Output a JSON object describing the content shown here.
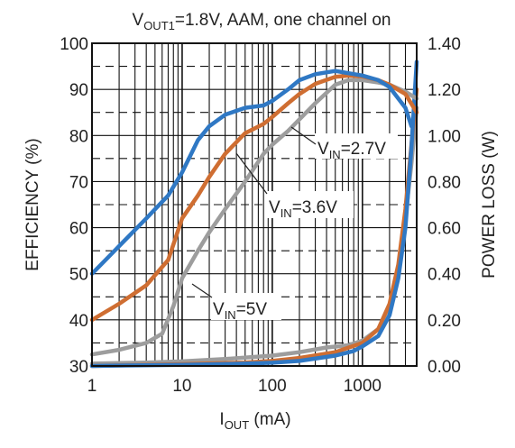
{
  "chart_data": {
    "type": "line",
    "title": {
      "main": "V",
      "sub": "OUT1",
      "rest": "=1.8V, AAM, one channel on"
    },
    "xlabel": {
      "main": "I",
      "sub": "OUT",
      "rest": " (mA)"
    },
    "ylabel_left": "EFFICIENCY (%)",
    "ylabel_right": "POWER LOSS (W)",
    "x_scale": "log",
    "xlim": [
      1,
      4000
    ],
    "ylim_left": [
      30,
      100
    ],
    "ylim_right": [
      0,
      1.4
    ],
    "x_ticks": [
      1,
      10,
      100,
      1000
    ],
    "x_tick_labels": [
      "1",
      "10",
      "100",
      "1000"
    ],
    "y_ticks_left": [
      30,
      40,
      50,
      60,
      70,
      80,
      90,
      100
    ],
    "y_tick_labels_left": [
      "30",
      "40",
      "50",
      "60",
      "70",
      "80",
      "90",
      "100"
    ],
    "y_ticks_right": [
      0,
      0.2,
      0.4,
      0.6,
      0.8,
      1.0,
      1.2,
      1.4
    ],
    "y_tick_labels_right": [
      "0.00",
      "0.20",
      "0.40",
      "0.60",
      "0.80",
      "1.00",
      "1.20",
      "1.40"
    ],
    "grid": true,
    "series": [
      {
        "label": {
          "main": "V",
          "sub": "IN",
          "rest": "=2.7V"
        },
        "color": "#2f78c4",
        "efficiency": {
          "x": [
            1,
            2,
            4,
            7,
            10,
            15,
            20,
            30,
            50,
            80,
            100,
            150,
            200,
            300,
            500,
            700,
            1000,
            1500,
            2000,
            3000,
            3500
          ],
          "y": [
            50,
            56,
            62,
            67,
            72,
            79,
            82,
            84.5,
            86,
            86.5,
            87.5,
            90,
            92,
            93.3,
            94,
            93.5,
            93,
            92,
            90.5,
            86,
            82
          ]
        },
        "power_loss": {
          "x": [
            1,
            10,
            50,
            100,
            200,
            500,
            800,
            1000,
            1500,
            2000,
            2500,
            3000,
            3500,
            3800,
            4000
          ],
          "y": [
            0.0,
            0.005,
            0.01,
            0.014,
            0.022,
            0.045,
            0.065,
            0.085,
            0.13,
            0.22,
            0.38,
            0.6,
            0.95,
            1.18,
            1.32
          ]
        }
      },
      {
        "label": {
          "main": "V",
          "sub": "IN",
          "rest": "=3.6V"
        },
        "color": "#cf6e32",
        "efficiency": {
          "x": [
            1,
            2,
            4,
            7,
            10,
            15,
            20,
            30,
            50,
            80,
            100,
            150,
            200,
            300,
            500,
            700,
            1000,
            1500,
            2000,
            3000,
            4000
          ],
          "y": [
            40,
            43.5,
            47.5,
            53,
            62,
            67,
            71,
            76,
            80.5,
            82.5,
            84,
            87,
            89,
            91.2,
            92.7,
            93,
            92.8,
            92,
            91,
            89,
            85
          ]
        },
        "power_loss": {
          "x": [
            1,
            10,
            50,
            100,
            200,
            500,
            1000,
            1500,
            2000,
            2500,
            3000,
            3500,
            4000
          ],
          "y": [
            0.0,
            0.008,
            0.015,
            0.022,
            0.035,
            0.06,
            0.1,
            0.16,
            0.27,
            0.44,
            0.68,
            0.96,
            1.2
          ]
        }
      },
      {
        "label": {
          "main": "V",
          "sub": "IN",
          "rest": "=5V"
        },
        "color": "#9d9d9d",
        "efficiency": {
          "x": [
            1,
            2,
            4,
            6,
            8,
            10,
            15,
            20,
            30,
            50,
            80,
            100,
            150,
            200,
            300,
            500,
            700,
            1000,
            1500,
            2000,
            3000,
            4000
          ],
          "y": [
            32.5,
            33.5,
            35,
            37,
            43,
            49,
            55,
            59,
            64,
            70,
            76,
            78,
            81,
            83.5,
            87,
            91,
            92,
            92,
            91.5,
            91,
            89.5,
            88
          ]
        },
        "power_loss": {
          "x": [
            1,
            4,
            10,
            30,
            100,
            200,
            400,
            700,
            1000,
            1500,
            2000,
            2500,
            3000,
            3500,
            4000
          ],
          "y": [
            0.01,
            0.015,
            0.02,
            0.03,
            0.045,
            0.06,
            0.08,
            0.09,
            0.11,
            0.16,
            0.26,
            0.42,
            0.64,
            0.88,
            1.12
          ]
        }
      }
    ]
  }
}
